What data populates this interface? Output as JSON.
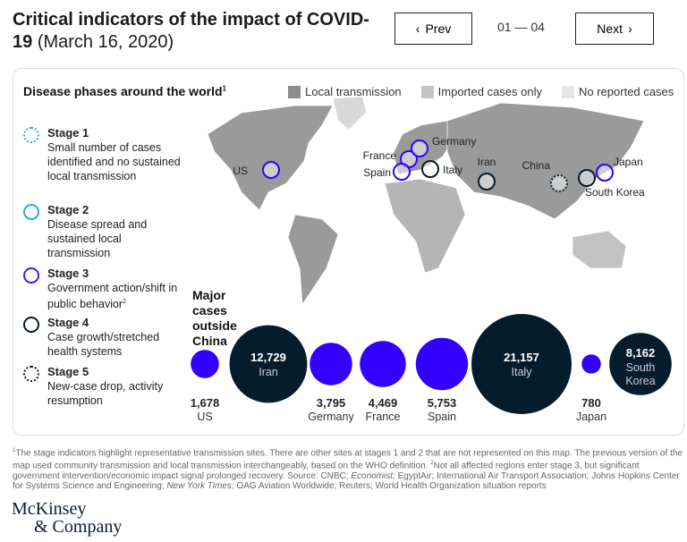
{
  "header": {
    "title_bold": "Critical indicators of the impact of COVID-19",
    "title_date": "(March 16, 2020)",
    "prev_label": "Prev",
    "next_label": "Next",
    "pager": "01 — 04"
  },
  "map": {
    "title": "Disease phases around the world",
    "title_footnote": "1",
    "legend": [
      {
        "label": "Local transmission",
        "color": "#8c8c8c"
      },
      {
        "label": "Imported cases only",
        "color": "#c4c4c4"
      },
      {
        "label": "No reported cases",
        "color": "#e6e6e6"
      }
    ],
    "markers": [
      {
        "label": "US",
        "stage": 3
      },
      {
        "label": "France",
        "stage": 3
      },
      {
        "label": "Germany",
        "stage": 3
      },
      {
        "label": "Spain",
        "stage": 3
      },
      {
        "label": "Italy",
        "stage": 4
      },
      {
        "label": "Iran",
        "stage": 4
      },
      {
        "label": "China",
        "stage": 5
      },
      {
        "label": "South Korea",
        "stage": 4
      },
      {
        "label": "Japan",
        "stage": 3
      }
    ]
  },
  "stages": [
    {
      "name": "Stage 1",
      "desc": "Small number of cases identified and no sustained local transmission",
      "style": "dotted",
      "color": "#29a8e0"
    },
    {
      "name": "Stage 2",
      "desc": "Disease spread and sustained local transmission",
      "style": "solid",
      "color": "#29a8e0"
    },
    {
      "name": "Stage 3",
      "desc": "Government action/shift in public behavior",
      "footnote": "2",
      "style": "solid",
      "color": "#3b1cf5"
    },
    {
      "name": "Stage 4",
      "desc": "Case growth/stretched health systems",
      "style": "solid",
      "color": "#061a33"
    },
    {
      "name": "Stage 5",
      "desc": "New-case drop, activity resumption",
      "style": "dotted",
      "color": "#061a33"
    }
  ],
  "colors": {
    "stage3": "#3300ff",
    "stage4": "#051c2c"
  },
  "chart_data": {
    "type": "bubble",
    "title": "Major cases outside China",
    "points": [
      {
        "country": "US",
        "cases": 1678,
        "label": "1,678",
        "stage": 3
      },
      {
        "country": "Iran",
        "cases": 12729,
        "label": "12,729",
        "stage": 4
      },
      {
        "country": "Germany",
        "cases": 3795,
        "label": "3,795",
        "stage": 3
      },
      {
        "country": "France",
        "cases": 4469,
        "label": "4,469",
        "stage": 3
      },
      {
        "country": "Spain",
        "cases": 5753,
        "label": "5,753",
        "stage": 3
      },
      {
        "country": "Italy",
        "cases": 21157,
        "label": "21,157",
        "stage": 4
      },
      {
        "country": "Japan",
        "cases": 780,
        "label": "780",
        "stage": 3
      },
      {
        "country": "South Korea",
        "cases": 8162,
        "label": "8,162",
        "stage": 4
      }
    ]
  },
  "footnote": {
    "n1": "1",
    "t1": "The stage indicators highlight representative transmission sites. There are other sites at stages 1 and 2 that are not represented on this map. The previous version of the map used community transmission and local transmission interchangeably, based on the WHO definition. ",
    "n2": "2",
    "t2": "Not all affected regions enter stage 3, but significant government intervention/economic impact signal prolonged recovery. Source: CNBC; ",
    "i1": "Economist;",
    "t3": " EgyptAir; International Air Transport Association; Johns Hopkins Center for Systems Science and Engineering; ",
    "i2": "New York Times;",
    "t4": " OAG Aviation Worldwide; Reuters; World Health Organization situation reports"
  },
  "logo": {
    "line1": "McKinsey",
    "line2": "& Company"
  }
}
